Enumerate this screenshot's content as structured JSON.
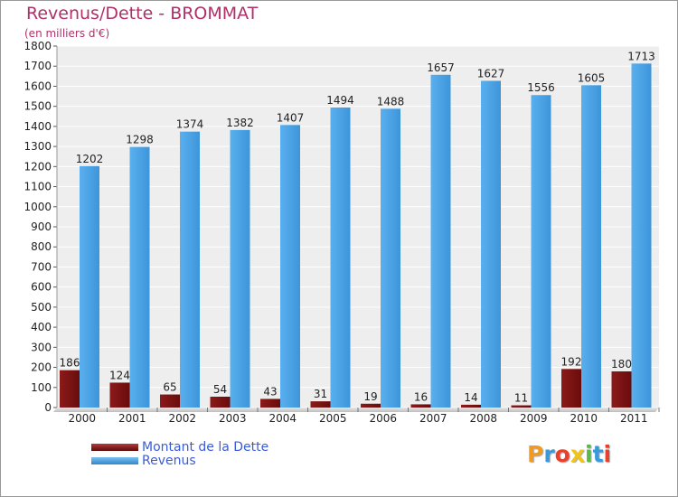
{
  "chart_data": {
    "type": "bar",
    "title": "Revenus/Dette - BROMMAT",
    "subtitle": "(en milliers d'€)",
    "categories": [
      "2000",
      "2001",
      "2002",
      "2003",
      "2004",
      "2005",
      "2006",
      "2007",
      "2008",
      "2009",
      "2010",
      "2011"
    ],
    "series": [
      {
        "name": "Montant de la Dette",
        "color": "#7a0f0f",
        "values": [
          186,
          124,
          65,
          54,
          43,
          31,
          19,
          16,
          14,
          11,
          192,
          180
        ]
      },
      {
        "name": "Revenus",
        "color": "#4ba3e5",
        "values": [
          1202,
          1298,
          1374,
          1382,
          1407,
          1494,
          1488,
          1657,
          1627,
          1556,
          1605,
          1713
        ]
      }
    ],
    "ylim": [
      0,
      1800
    ],
    "yticks": [
      0,
      100,
      200,
      300,
      400,
      500,
      600,
      700,
      800,
      900,
      1000,
      1100,
      1200,
      1300,
      1400,
      1500,
      1600,
      1700,
      1800
    ],
    "grid": true,
    "legend": "bottom-left"
  },
  "logo": {
    "letters": [
      "P",
      "r",
      "o",
      "x",
      "i",
      "t",
      "i"
    ],
    "colors": [
      "#f39a1e",
      "#3a9ad9",
      "#e8402d",
      "#f0c419",
      "#5ab947",
      "#3a9ad9",
      "#e8402d"
    ]
  }
}
